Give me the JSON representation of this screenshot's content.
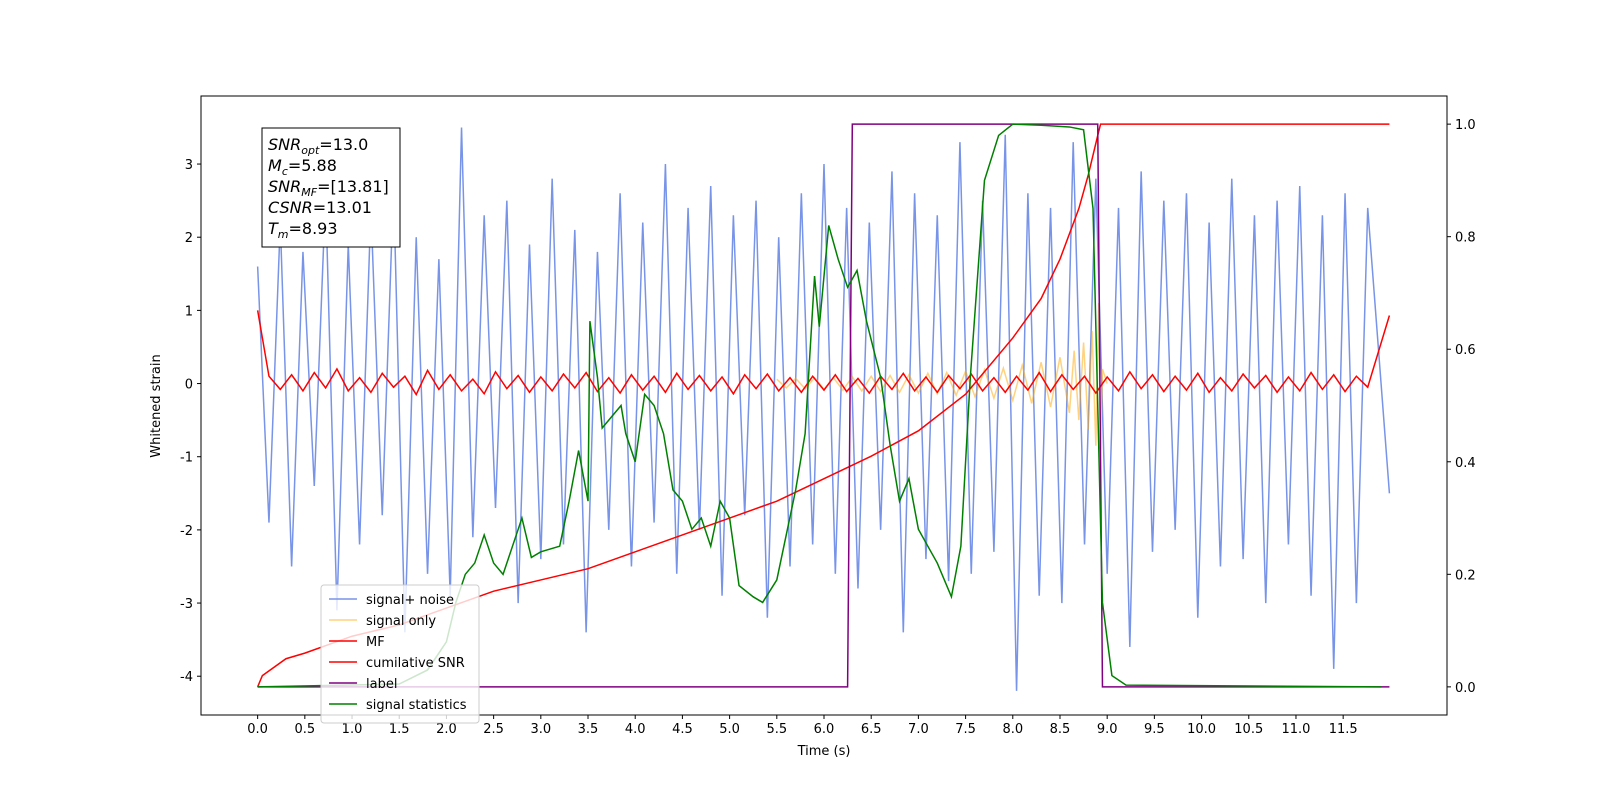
{
  "chart_data": {
    "type": "line",
    "xlabel": "Time (s)",
    "ylabel": "Whitened strain",
    "xlim": [
      -0.6,
      12.6
    ],
    "ylim": [
      -4.53,
      3.93
    ],
    "y2lim": [
      -0.05,
      1.05
    ],
    "xticks": [
      {
        "value": 0,
        "label": "0.0"
      },
      0.5,
      {
        "value": 1,
        "label": "1.0"
      },
      1.5,
      {
        "value": 2,
        "label": "2.0"
      },
      2.5,
      {
        "value": 3,
        "label": "3.0"
      },
      3.5,
      {
        "value": 4,
        "label": "4.0"
      },
      4.5,
      {
        "value": 5,
        "label": "5.0"
      },
      5.5,
      {
        "value": 6,
        "label": "6.0"
      },
      6.5,
      {
        "value": 7,
        "label": "7.0"
      },
      7.5,
      {
        "value": 8,
        "label": "8.0"
      },
      8.5,
      {
        "value": 9,
        "label": "9.0"
      },
      9.5,
      {
        "value": 10,
        "label": "10.0"
      },
      10.5,
      {
        "value": 11,
        "label": "11.0"
      },
      11.5
    ],
    "yticks": [
      -4,
      -3,
      -2,
      -1,
      0,
      1,
      2,
      3
    ],
    "y2ticks": [
      {
        "value": 0,
        "label": "0.0"
      },
      0.2,
      0.4,
      0.6,
      0.8,
      {
        "value": 1,
        "label": "1.0"
      }
    ],
    "grid": false,
    "legend": "lower left",
    "annotation": [
      {
        "symbol": "SNR",
        "subscript": "opt",
        "text": "=13.0"
      },
      {
        "symbol": "M",
        "subscript": "c",
        "text": "=5.88"
      },
      {
        "symbol": "SNR",
        "subscript": "MF",
        "text": "=[13.81]"
      },
      {
        "symbol": "CSNR",
        "subscript": "",
        "text": "=13.01"
      },
      {
        "symbol": "T",
        "subscript": "m",
        "text": "=8.93"
      }
    ],
    "x": [
      0,
      0.12,
      0.24,
      0.36,
      0.48,
      0.6,
      0.72,
      0.84,
      0.96,
      1.08,
      1.2,
      1.32,
      1.44,
      1.56,
      1.68,
      1.8,
      1.92,
      2.04,
      2.16,
      2.28,
      2.4,
      2.52,
      2.64,
      2.76,
      2.88,
      3,
      3.12,
      3.24,
      3.36,
      3.48,
      3.6,
      3.72,
      3.84,
      3.96,
      4.08,
      4.2,
      4.32,
      4.44,
      4.56,
      4.68,
      4.8,
      4.92,
      5.04,
      5.16,
      5.28,
      5.4,
      5.52,
      5.64,
      5.76,
      5.88,
      6,
      6.12,
      6.24,
      6.36,
      6.48,
      6.6,
      6.72,
      6.84,
      6.96,
      7.08,
      7.2,
      7.32,
      7.44,
      7.56,
      7.68,
      7.8,
      7.92,
      8.04,
      8.16,
      8.28,
      8.4,
      8.52,
      8.64,
      8.76,
      8.88,
      9,
      9.12,
      9.24,
      9.36,
      9.48,
      9.6,
      9.72,
      9.84,
      9.96,
      10.08,
      10.2,
      10.32,
      10.44,
      10.56,
      10.68,
      10.8,
      10.92,
      11.04,
      11.16,
      11.28,
      11.4,
      11.52,
      11.64,
      11.76,
      11.99
    ],
    "series": [
      {
        "name": "signal+ noise",
        "color": "#7894e8",
        "values": [
          1.6,
          -1.9,
          2.2,
          -2.5,
          1.8,
          -1.4,
          2.6,
          -3.1,
          1.9,
          -2.2,
          2.4,
          -1.8,
          2.7,
          -3.4,
          2.0,
          -2.6,
          1.7,
          -2.9,
          3.5,
          -2.1,
          2.3,
          -1.7,
          2.5,
          -3.0,
          1.9,
          -2.4,
          2.8,
          -2.2,
          2.1,
          -3.4,
          1.8,
          -2.0,
          2.6,
          -2.5,
          2.2,
          -1.9,
          3.0,
          -2.6,
          2.4,
          -2.0,
          2.7,
          -2.9,
          2.3,
          -1.8,
          2.5,
          -3.2,
          2.0,
          -2.5,
          2.6,
          -2.2,
          3.0,
          -2.6,
          2.4,
          -2.8,
          2.2,
          -2.0,
          2.9,
          -3.4,
          2.6,
          -2.4,
          2.3,
          -2.7,
          3.3,
          -2.6,
          2.5,
          -2.3,
          3.4,
          -4.2,
          2.6,
          -2.9,
          2.4,
          -3.0,
          3.3,
          -2.2,
          2.8,
          -2.6,
          2.4,
          -3.6,
          2.9,
          -2.3,
          2.5,
          -2.0,
          2.6,
          -3.2,
          2.2,
          -2.5,
          2.8,
          -2.4,
          2.3,
          -3.0,
          2.5,
          -2.2,
          2.7,
          -2.9,
          2.3,
          -3.9,
          2.6,
          -3.0,
          2.4,
          -1.5
        ]
      },
      {
        "name": "signal only",
        "color": "orange",
        "x": [
          5.5,
          5.6,
          5.7,
          5.8,
          5.9,
          6.0,
          6.1,
          6.2,
          6.3,
          6.4,
          6.5,
          6.6,
          6.7,
          6.8,
          6.9,
          7.0,
          7.1,
          7.2,
          7.3,
          7.4,
          7.5,
          7.6,
          7.7,
          7.8,
          7.9,
          8.0,
          8.1,
          8.2,
          8.3,
          8.4,
          8.5,
          8.6,
          8.65,
          8.7,
          8.75,
          8.8,
          8.84,
          8.88,
          8.91,
          8.93,
          8.95,
          9.0
        ],
        "values": [
          0.06,
          -0.06,
          0.07,
          -0.07,
          0.08,
          -0.08,
          0.08,
          -0.09,
          0.09,
          -0.1,
          0.1,
          -0.11,
          0.11,
          -0.12,
          0.12,
          -0.13,
          0.14,
          -0.14,
          0.15,
          -0.16,
          0.17,
          -0.18,
          0.19,
          -0.2,
          0.21,
          -0.23,
          0.25,
          -0.27,
          0.29,
          -0.32,
          0.36,
          -0.4,
          0.45,
          -0.5,
          0.56,
          -0.62,
          0.72,
          -0.85,
          1.1,
          -0.9,
          0.2,
          0
        ]
      },
      {
        "name": "MF",
        "color": "red",
        "values": [
          1.0,
          0.1,
          -0.08,
          0.12,
          -0.1,
          0.15,
          -0.06,
          0.2,
          -0.1,
          0.08,
          -0.12,
          0.14,
          -0.05,
          0.1,
          -0.15,
          0.18,
          -0.08,
          0.12,
          -0.1,
          0.06,
          -0.14,
          0.16,
          -0.07,
          0.11,
          -0.12,
          0.09,
          -0.1,
          0.13,
          -0.06,
          0.15,
          -0.11,
          0.08,
          -0.13,
          0.12,
          -0.09,
          0.1,
          -0.12,
          0.14,
          -0.08,
          0.11,
          -0.1,
          0.09,
          -0.14,
          0.12,
          -0.07,
          0.13,
          -0.1,
          0.08,
          -0.12,
          0.1,
          -0.09,
          0.12,
          -0.11,
          0.07,
          -0.13,
          0.1,
          -0.08,
          0.14,
          -0.1,
          0.09,
          -0.12,
          0.11,
          -0.07,
          0.13,
          -0.1,
          0.08,
          -0.12,
          0.1,
          -0.09,
          0.15,
          -0.11,
          0.12,
          -0.08,
          0.1,
          -0.13,
          0.09,
          -0.1,
          0.16,
          -0.07,
          0.12,
          -0.11,
          0.1,
          -0.09,
          0.14,
          -0.12,
          0.08,
          -0.1,
          0.13,
          -0.06,
          0.11,
          -0.12,
          0.09,
          -0.1,
          0.15,
          -0.08,
          0.12,
          -0.11,
          0.1,
          -0.05,
          0.93
        ]
      },
      {
        "name": "cumilative SNR",
        "color": "red",
        "axis": "y2",
        "x": [
          0,
          0.05,
          0.3,
          0.5,
          1,
          1.5,
          2,
          2.5,
          3,
          3.5,
          4,
          4.5,
          5,
          5.5,
          6,
          6.5,
          7,
          7.5,
          8,
          8.3,
          8.5,
          8.7,
          8.8,
          8.9,
          8.93,
          11.99
        ],
        "values": [
          0,
          0.02,
          0.05,
          0.06,
          0.09,
          0.11,
          0.14,
          0.17,
          0.19,
          0.21,
          0.24,
          0.27,
          0.3,
          0.33,
          0.37,
          0.41,
          0.455,
          0.52,
          0.62,
          0.69,
          0.76,
          0.85,
          0.91,
          0.98,
          1.0,
          1.0
        ]
      },
      {
        "name": "label",
        "color": "purple",
        "axis": "y2",
        "x": [
          0,
          6.25,
          6.3,
          8.9,
          8.95,
          11.99
        ],
        "values": [
          0,
          0,
          1,
          1,
          0,
          0
        ]
      },
      {
        "name": "signal statistics",
        "color": "green",
        "axis": "y2",
        "x": [
          0,
          1.5,
          1.8,
          2,
          2.1,
          2.2,
          2.3,
          2.4,
          2.5,
          2.6,
          2.7,
          2.8,
          2.9,
          3,
          3.2,
          3.3,
          3.4,
          3.5,
          3.52,
          3.6,
          3.65,
          3.75,
          3.85,
          3.9,
          4,
          4.1,
          4.2,
          4.3,
          4.4,
          4.5,
          4.6,
          4.7,
          4.8,
          4.9,
          5,
          5.1,
          5.25,
          5.35,
          5.5,
          5.7,
          5.8,
          5.9,
          5.95,
          6.05,
          6.15,
          6.25,
          6.35,
          6.45,
          6.6,
          6.7,
          6.8,
          6.9,
          7,
          7.1,
          7.2,
          7.35,
          7.45,
          7.55,
          7.7,
          7.85,
          8,
          8.3,
          8.6,
          8.75,
          8.85,
          8.95,
          9.05,
          9.2,
          11.9
        ],
        "values": [
          0,
          0.005,
          0.03,
          0.08,
          0.15,
          0.2,
          0.22,
          0.27,
          0.22,
          0.2,
          0.25,
          0.3,
          0.23,
          0.24,
          0.25,
          0.33,
          0.42,
          0.33,
          0.65,
          0.55,
          0.46,
          0.48,
          0.5,
          0.45,
          0.4,
          0.52,
          0.5,
          0.45,
          0.35,
          0.33,
          0.28,
          0.3,
          0.25,
          0.33,
          0.3,
          0.18,
          0.16,
          0.15,
          0.19,
          0.35,
          0.45,
          0.73,
          0.64,
          0.82,
          0.76,
          0.71,
          0.74,
          0.65,
          0.55,
          0.43,
          0.33,
          0.37,
          0.28,
          0.25,
          0.22,
          0.16,
          0.25,
          0.55,
          0.9,
          0.98,
          1.0,
          0.998,
          0.995,
          0.99,
          0.85,
          0.15,
          0.02,
          0.003,
          0
        ]
      }
    ]
  }
}
